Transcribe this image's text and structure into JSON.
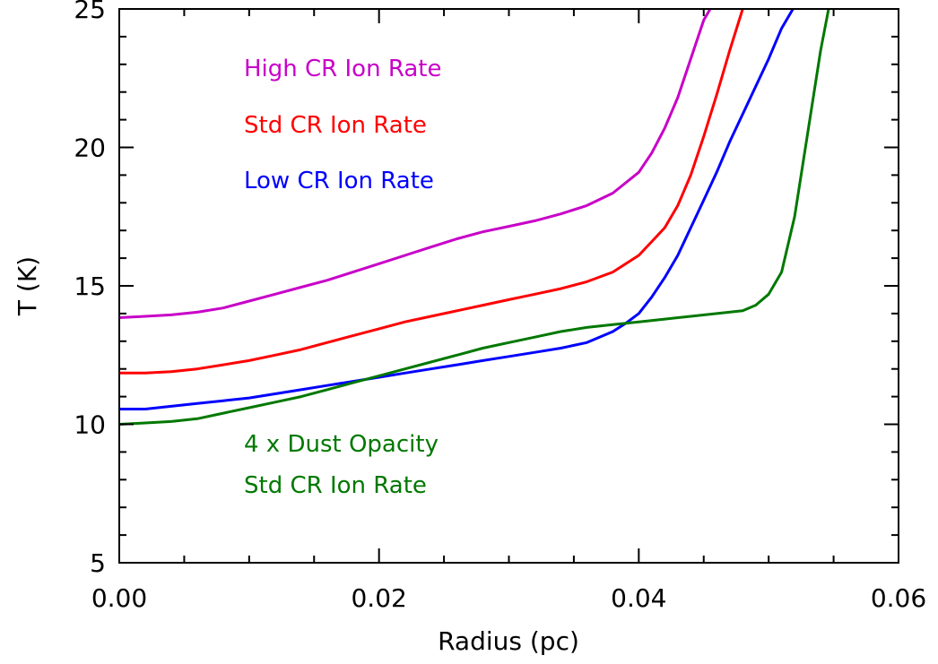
{
  "chart_data": {
    "type": "line",
    "title": "",
    "xlabel": "Radius (pc)",
    "ylabel": "T (K)",
    "xlim": [
      0.0,
      0.06
    ],
    "ylim": [
      5,
      25
    ],
    "x_tick_labels": [
      "0.00",
      "0.02",
      "0.04",
      "0.06"
    ],
    "x_tick_values": [
      0.0,
      0.02,
      0.04,
      0.06
    ],
    "y_tick_labels": [
      "5",
      "10",
      "15",
      "20",
      "25"
    ],
    "y_tick_values": [
      5,
      10,
      15,
      20,
      25
    ],
    "grid": false,
    "legend": "none",
    "annotations": [
      {
        "id": "high",
        "text": "High CR Ion Rate",
        "color": "#c800c8"
      },
      {
        "id": "std",
        "text": "Std CR Ion Rate",
        "color": "#ff0000"
      },
      {
        "id": "low",
        "text": "Low CR Ion Rate",
        "color": "#0000ff"
      },
      {
        "id": "dust1",
        "text": "4 x Dust Opacity",
        "color": "#007800"
      },
      {
        "id": "dust2",
        "text": "Std CR Ion Rate",
        "color": "#007800"
      }
    ],
    "series": [
      {
        "color": "#c800c8",
        "x": [
          0.0,
          0.002,
          0.004,
          0.006,
          0.008,
          0.01,
          0.012,
          0.014,
          0.016,
          0.018,
          0.02,
          0.022,
          0.024,
          0.026,
          0.028,
          0.03,
          0.032,
          0.034,
          0.036,
          0.038,
          0.04,
          0.041,
          0.042,
          0.043,
          0.044,
          0.045,
          0.0455,
          0.046
        ],
        "y": [
          13.85,
          13.9,
          13.95,
          14.05,
          14.2,
          14.45,
          14.7,
          14.95,
          15.2,
          15.5,
          15.8,
          16.1,
          16.4,
          16.7,
          16.95,
          17.15,
          17.35,
          17.6,
          17.9,
          18.35,
          19.1,
          19.8,
          20.7,
          21.8,
          23.2,
          24.6,
          25.0,
          25.3
        ]
      },
      {
        "color": "#ff0000",
        "x": [
          0.0,
          0.002,
          0.004,
          0.006,
          0.008,
          0.01,
          0.012,
          0.014,
          0.016,
          0.018,
          0.02,
          0.022,
          0.024,
          0.026,
          0.028,
          0.03,
          0.032,
          0.034,
          0.036,
          0.038,
          0.04,
          0.041,
          0.042,
          0.043,
          0.044,
          0.045,
          0.046,
          0.047,
          0.048,
          0.0488
        ],
        "y": [
          11.85,
          11.85,
          11.9,
          12.0,
          12.15,
          12.3,
          12.5,
          12.7,
          12.95,
          13.2,
          13.45,
          13.7,
          13.9,
          14.1,
          14.3,
          14.5,
          14.7,
          14.9,
          15.15,
          15.5,
          16.1,
          16.6,
          17.1,
          17.9,
          19.0,
          20.4,
          21.9,
          23.5,
          25.0,
          25.3
        ]
      },
      {
        "color": "#0000ff",
        "x": [
          0.0,
          0.002,
          0.004,
          0.006,
          0.008,
          0.01,
          0.012,
          0.014,
          0.016,
          0.018,
          0.02,
          0.022,
          0.024,
          0.026,
          0.028,
          0.03,
          0.032,
          0.034,
          0.036,
          0.038,
          0.039,
          0.04,
          0.041,
          0.042,
          0.043,
          0.044,
          0.045,
          0.046,
          0.047,
          0.048,
          0.049,
          0.05,
          0.051,
          0.052
        ],
        "y": [
          10.55,
          10.55,
          10.65,
          10.75,
          10.85,
          10.95,
          11.1,
          11.25,
          11.4,
          11.55,
          11.7,
          11.85,
          12.0,
          12.15,
          12.3,
          12.45,
          12.6,
          12.75,
          12.95,
          13.35,
          13.65,
          14.0,
          14.6,
          15.3,
          16.1,
          17.1,
          18.1,
          19.1,
          20.2,
          21.2,
          22.2,
          23.2,
          24.3,
          25.1
        ]
      },
      {
        "color": "#007800",
        "x": [
          0.0,
          0.002,
          0.004,
          0.006,
          0.008,
          0.01,
          0.012,
          0.014,
          0.016,
          0.018,
          0.02,
          0.022,
          0.024,
          0.026,
          0.028,
          0.03,
          0.032,
          0.034,
          0.036,
          0.038,
          0.04,
          0.042,
          0.044,
          0.046,
          0.048,
          0.049,
          0.05,
          0.051,
          0.052,
          0.053,
          0.054,
          0.0547
        ],
        "y": [
          10.0,
          10.05,
          10.1,
          10.2,
          10.4,
          10.6,
          10.8,
          11.0,
          11.25,
          11.5,
          11.75,
          12.0,
          12.25,
          12.5,
          12.75,
          12.95,
          13.15,
          13.35,
          13.5,
          13.6,
          13.7,
          13.8,
          13.9,
          14.0,
          14.1,
          14.3,
          14.7,
          15.5,
          17.5,
          20.5,
          23.5,
          25.2
        ]
      }
    ]
  }
}
